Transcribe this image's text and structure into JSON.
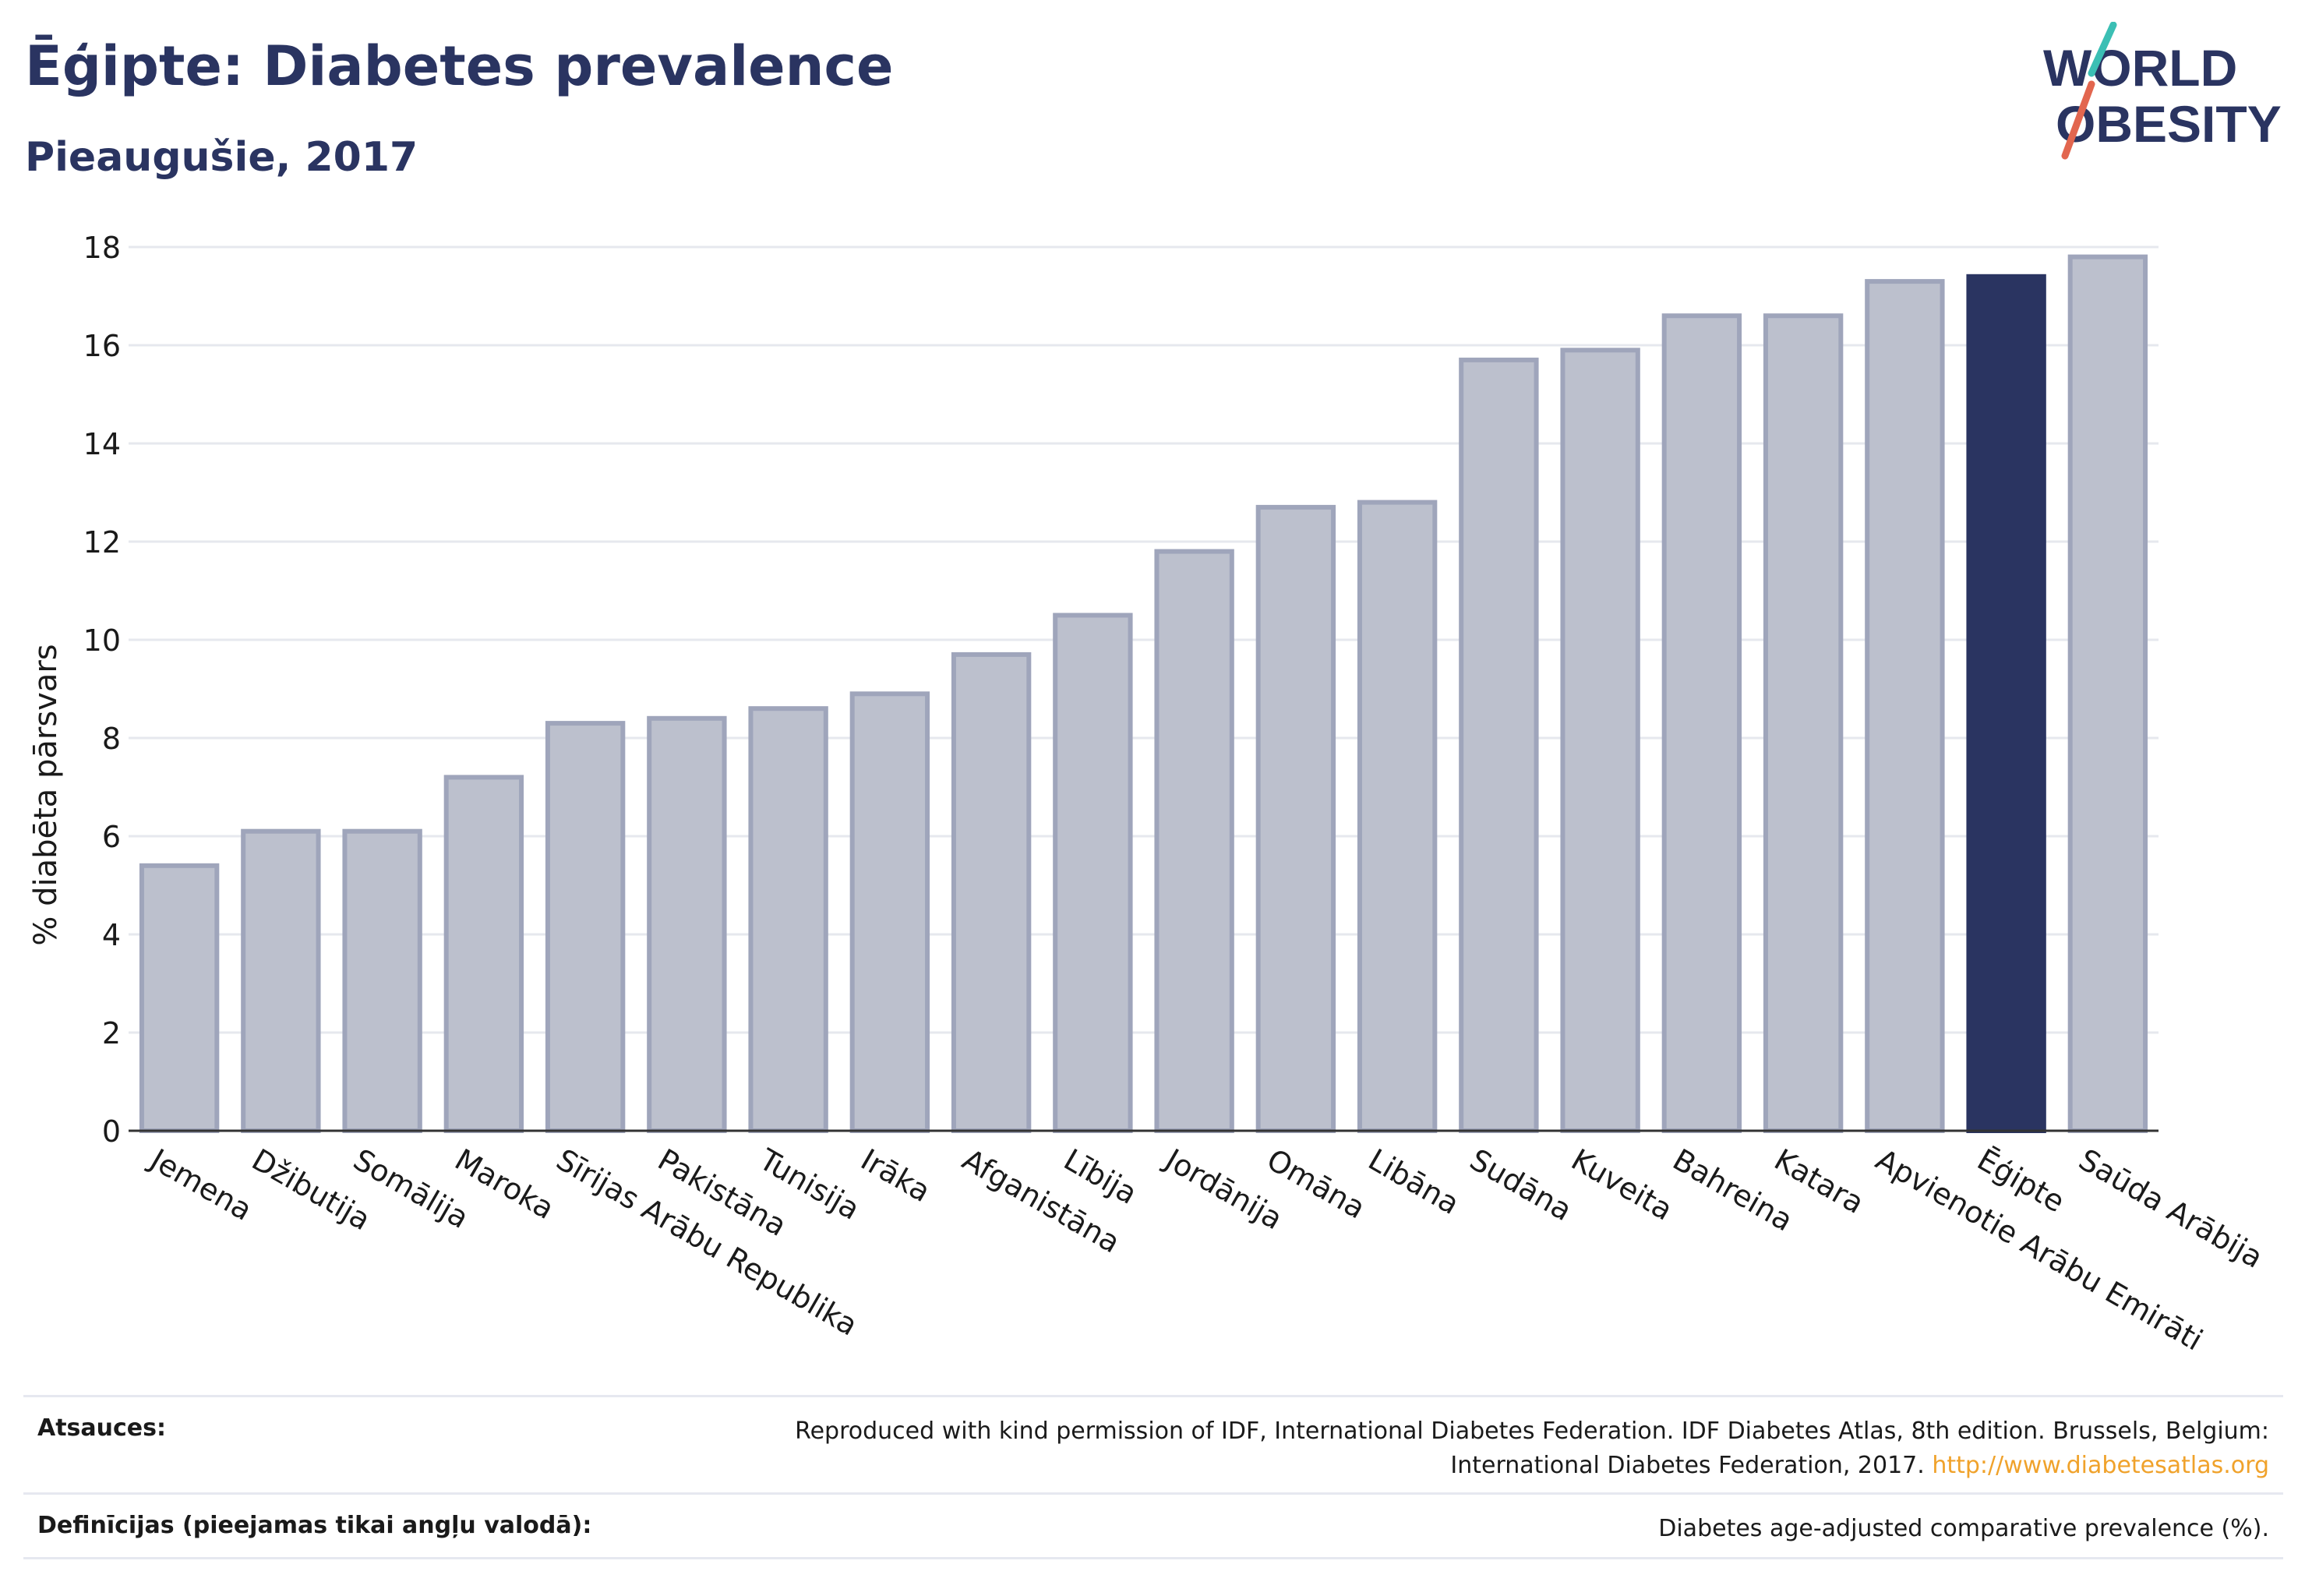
{
  "header": {
    "title": "Ēģipte: Diabetes prevalence",
    "subtitle": "Pieaugušie, 2017"
  },
  "logo": {
    "line1": "WORLD",
    "line2": "OBESITY",
    "icon": "world-obesity-logo"
  },
  "colors": {
    "highlight": "#2a3461",
    "bar_fill": "#bcc0cd",
    "bar_stroke": "#9fa5bb",
    "text": "#2a3461",
    "accent_teal": "#3bbfb4",
    "accent_red": "#e2664f"
  },
  "chart_data": {
    "type": "bar",
    "ylabel": "% diabēta pārsvars",
    "xlabel": "",
    "ylim": [
      0,
      18
    ],
    "yticks": [
      0,
      2,
      4,
      6,
      8,
      10,
      12,
      14,
      16,
      18
    ],
    "grid": true,
    "highlight": "Ēģipte",
    "categories": [
      "Jemena",
      "Džibutija",
      "Somālija",
      "Maroka",
      "Sīrijas Arābu Republika",
      "Pakistāna",
      "Tunisija",
      "Irāka",
      "Afganistāna",
      "Lībija",
      "Jordānija",
      "Omāna",
      "Libāna",
      "Sudāna",
      "Kuveita",
      "Bahreina",
      "Katara",
      "Apvienotie Arābu Emirāti",
      "Ēģipte",
      "Saūda Arābija"
    ],
    "values": [
      5.4,
      6.1,
      6.1,
      7.2,
      8.3,
      8.4,
      8.6,
      8.9,
      9.7,
      10.5,
      11.8,
      12.7,
      12.8,
      15.7,
      15.9,
      16.6,
      16.6,
      17.3,
      17.4,
      17.8
    ]
  },
  "footer": {
    "sources_label": "Atsauces:",
    "sources_text_1": "Reproduced with kind permission of IDF, International Diabetes Federation. IDF Diabetes Atlas, 8th edition. Brussels, Belgium:",
    "sources_text_2": "International Diabetes Federation, 2017.",
    "sources_link": "http://www.diabetesatlas.org",
    "definitions_label": "Definīcijas (pieejamas tikai angļu valodā):",
    "definitions_text": "Diabetes age-adjusted comparative prevalence (%)."
  }
}
